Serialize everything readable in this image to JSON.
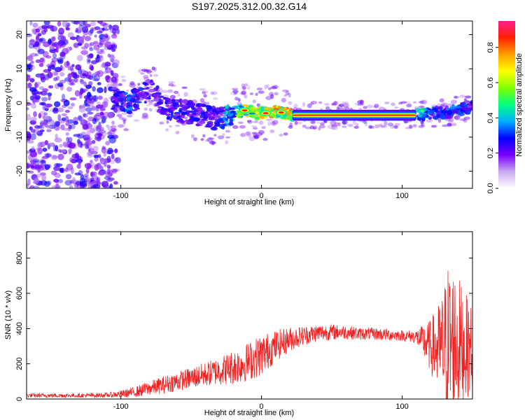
{
  "chart_data": [
    {
      "type": "heatmap",
      "title": "S197.2025.312.00.32.G14",
      "xlabel": "Height of straight line (km)",
      "ylabel": "Frequency (Hz)",
      "xlim": [
        -167,
        150
      ],
      "ylim": [
        -25,
        24
      ],
      "xticks": [
        -100,
        0,
        100
      ],
      "yticks": [
        -20,
        -10,
        0,
        10,
        20
      ],
      "xtick_labels": [
        "-100",
        "0",
        "100"
      ],
      "ytick_labels": [
        "-20",
        "-10",
        "0",
        "10",
        "20"
      ],
      "grid": false,
      "colorbar": {
        "label": "Normalized spectral amplitude",
        "range": [
          0,
          0.95
        ],
        "ticks": [
          0.0,
          0.2,
          0.4,
          0.6,
          0.8
        ],
        "tick_labels": [
          "0.0",
          "0.2",
          "0.4",
          "0.6",
          "0.8"
        ],
        "colormap": [
          "#ffffff",
          "#c8a8f0",
          "#7b00ff",
          "#0000ff",
          "#00b0ff",
          "#00ff80",
          "#80ff00",
          "#ffff00",
          "#ffa000",
          "#ff2000",
          "#ff2090"
        ]
      },
      "trend": {
        "x": [
          -105,
          -95,
          -85,
          -78,
          -70,
          -60,
          -50,
          -40,
          -30,
          -25,
          -20,
          -12,
          -5,
          0,
          8,
          15,
          25,
          40,
          60,
          80,
          100,
          110,
          120,
          130,
          140,
          150
        ],
        "freq": [
          1,
          0,
          2,
          4,
          -1,
          -2,
          -3,
          -4,
          -5,
          -4,
          -3,
          -2,
          -3,
          -3,
          -2.5,
          -3,
          -3.5,
          -3.6,
          -3.6,
          -3.6,
          -3.6,
          -3.5,
          -3,
          -3,
          -2,
          -1
        ],
        "peak_amplitude": [
          0.3,
          0.35,
          0.3,
          0.25,
          0.3,
          0.28,
          0.3,
          0.28,
          0.3,
          0.45,
          0.55,
          0.75,
          0.7,
          0.72,
          0.8,
          0.82,
          0.88,
          0.9,
          0.9,
          0.9,
          0.9,
          0.55,
          0.4,
          0.35,
          0.35,
          0.3
        ]
      }
    },
    {
      "type": "line",
      "xlabel": "Height of straight line (km)",
      "ylabel": "SNR (10 * v/v)",
      "xlim": [
        -167,
        150
      ],
      "ylim": [
        0,
        950
      ],
      "xticks": [
        -100,
        0,
        100
      ],
      "yticks": [
        0,
        200,
        400,
        600,
        800
      ],
      "xtick_labels": [
        "-100",
        "0",
        "100"
      ],
      "ytick_labels": [
        "0",
        "200",
        "400",
        "600",
        "800"
      ],
      "grid": false,
      "color": "#ee2222",
      "envelope": {
        "x": [
          -167,
          -150,
          -130,
          -110,
          -100,
          -90,
          -80,
          -70,
          -60,
          -50,
          -40,
          -30,
          -25,
          -20,
          -10,
          0,
          10,
          20,
          30,
          40,
          50,
          60,
          70,
          80,
          90,
          100,
          108,
          112,
          120,
          128,
          133,
          138,
          145,
          150
        ],
        "mean": [
          20,
          20,
          20,
          22,
          28,
          40,
          60,
          80,
          100,
          120,
          140,
          160,
          170,
          180,
          210,
          250,
          300,
          340,
          360,
          375,
          380,
          380,
          370,
          370,
          365,
          360,
          355,
          345,
          300,
          280,
          300,
          320,
          300,
          280
        ],
        "amp": [
          12,
          12,
          12,
          14,
          20,
          30,
          40,
          50,
          55,
          60,
          70,
          80,
          90,
          100,
          110,
          120,
          90,
          70,
          55,
          50,
          45,
          40,
          35,
          35,
          35,
          30,
          35,
          60,
          150,
          300,
          500,
          420,
          300,
          250
        ]
      }
    }
  ]
}
